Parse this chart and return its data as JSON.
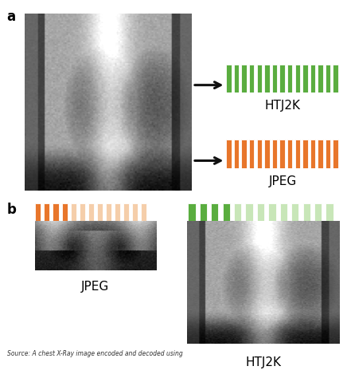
{
  "title_a": "a",
  "title_b": "b",
  "htj2k_color": "#5aad3f",
  "jpeg_color": "#e8762b",
  "htj2k_light": "#c8e6b8",
  "jpeg_light": "#f5ceaa",
  "htj2k_label": "HTJ2K",
  "jpeg_label": "JPEG",
  "n_bars_full": 15,
  "n_bars_partial_active": 4,
  "n_bars_partial_total": 13,
  "background_color": "#ffffff",
  "arrow_color": "#111111",
  "font_size_label": 11,
  "font_size_panel": 12
}
